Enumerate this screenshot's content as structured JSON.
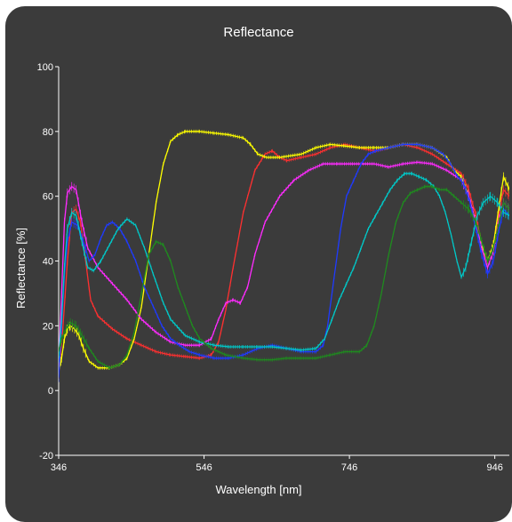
{
  "chart_data": {
    "type": "line",
    "title": "Reflectance",
    "xlabel": "Wavelength [nm]",
    "ylabel": "Reflectance [%]",
    "xlim": [
      346,
      966
    ],
    "ylim": [
      -20,
      100
    ],
    "xticks": [
      "346",
      "546",
      "746",
      "946"
    ],
    "yticks": [
      "-20",
      "0",
      "20",
      "40",
      "60",
      "80",
      "100"
    ],
    "grid": false,
    "series": [
      {
        "color": "#ff3030",
        "points": [
          [
            346,
            5
          ],
          [
            352,
            20
          ],
          [
            358,
            40
          ],
          [
            364,
            55
          ],
          [
            370,
            56
          ],
          [
            376,
            52
          ],
          [
            382,
            42
          ],
          [
            390,
            28
          ],
          [
            400,
            23
          ],
          [
            420,
            19
          ],
          [
            440,
            16
          ],
          [
            460,
            14
          ],
          [
            480,
            12
          ],
          [
            500,
            11
          ],
          [
            520,
            10.5
          ],
          [
            540,
            10
          ],
          [
            556,
            11
          ],
          [
            566,
            15
          ],
          [
            576,
            25
          ],
          [
            586,
            38
          ],
          [
            600,
            55
          ],
          [
            616,
            68
          ],
          [
            630,
            73
          ],
          [
            640,
            74
          ],
          [
            650,
            72
          ],
          [
            660,
            71
          ],
          [
            680,
            72
          ],
          [
            700,
            73
          ],
          [
            720,
            75
          ],
          [
            740,
            76
          ],
          [
            760,
            75
          ],
          [
            780,
            74
          ],
          [
            800,
            75
          ],
          [
            820,
            76
          ],
          [
            840,
            75
          ],
          [
            860,
            73
          ],
          [
            880,
            70
          ],
          [
            900,
            67
          ],
          [
            910,
            62
          ],
          [
            920,
            54
          ],
          [
            928,
            45
          ],
          [
            936,
            40
          ],
          [
            944,
            45
          ],
          [
            952,
            55
          ],
          [
            958,
            62
          ],
          [
            966,
            60
          ]
        ]
      },
      {
        "color": "#ffff00",
        "points": [
          [
            346,
            6
          ],
          [
            350,
            10
          ],
          [
            354,
            16
          ],
          [
            358,
            19
          ],
          [
            362,
            20
          ],
          [
            368,
            19
          ],
          [
            374,
            17
          ],
          [
            380,
            13
          ],
          [
            388,
            9
          ],
          [
            400,
            7
          ],
          [
            416,
            7
          ],
          [
            430,
            8
          ],
          [
            440,
            10
          ],
          [
            450,
            16
          ],
          [
            460,
            26
          ],
          [
            470,
            42
          ],
          [
            480,
            58
          ],
          [
            490,
            70
          ],
          [
            500,
            77
          ],
          [
            510,
            79
          ],
          [
            520,
            80
          ],
          [
            540,
            80
          ],
          [
            560,
            79.5
          ],
          [
            580,
            79
          ],
          [
            600,
            78
          ],
          [
            610,
            76
          ],
          [
            620,
            73
          ],
          [
            632,
            72
          ],
          [
            650,
            72
          ],
          [
            680,
            73
          ],
          [
            700,
            75
          ],
          [
            720,
            76
          ],
          [
            740,
            75.5
          ],
          [
            760,
            75
          ],
          [
            780,
            75
          ],
          [
            800,
            75
          ],
          [
            820,
            76
          ],
          [
            840,
            76
          ],
          [
            860,
            75
          ],
          [
            880,
            72
          ],
          [
            890,
            68
          ],
          [
            900,
            66
          ],
          [
            910,
            60
          ],
          [
            920,
            52
          ],
          [
            928,
            45
          ],
          [
            936,
            40
          ],
          [
            944,
            45
          ],
          [
            952,
            57
          ],
          [
            958,
            66
          ],
          [
            966,
            62
          ]
        ]
      },
      {
        "color": "#ff2bff",
        "points": [
          [
            346,
            8
          ],
          [
            350,
            30
          ],
          [
            354,
            52
          ],
          [
            358,
            61
          ],
          [
            364,
            63
          ],
          [
            370,
            62
          ],
          [
            378,
            52
          ],
          [
            386,
            44
          ],
          [
            400,
            38
          ],
          [
            420,
            33
          ],
          [
            440,
            28
          ],
          [
            460,
            22
          ],
          [
            480,
            18
          ],
          [
            500,
            15
          ],
          [
            520,
            14
          ],
          [
            540,
            14
          ],
          [
            556,
            16
          ],
          [
            566,
            22
          ],
          [
            576,
            27
          ],
          [
            586,
            28
          ],
          [
            596,
            27
          ],
          [
            606,
            32
          ],
          [
            616,
            42
          ],
          [
            630,
            52
          ],
          [
            650,
            60
          ],
          [
            670,
            65
          ],
          [
            690,
            68
          ],
          [
            710,
            70
          ],
          [
            730,
            70
          ],
          [
            750,
            70
          ],
          [
            780,
            70
          ],
          [
            800,
            69
          ],
          [
            820,
            70
          ],
          [
            840,
            70.5
          ],
          [
            860,
            70
          ],
          [
            880,
            68
          ],
          [
            900,
            65
          ],
          [
            910,
            60
          ],
          [
            920,
            52
          ],
          [
            928,
            44
          ],
          [
            936,
            38
          ],
          [
            944,
            43
          ],
          [
            952,
            53
          ],
          [
            958,
            58
          ],
          [
            966,
            56
          ]
        ]
      },
      {
        "color": "#1f3bff",
        "points": [
          [
            346,
            4
          ],
          [
            350,
            20
          ],
          [
            354,
            36
          ],
          [
            358,
            46
          ],
          [
            364,
            52
          ],
          [
            372,
            51
          ],
          [
            380,
            46
          ],
          [
            388,
            40
          ],
          [
            396,
            42
          ],
          [
            404,
            47
          ],
          [
            412,
            51
          ],
          [
            420,
            52
          ],
          [
            430,
            50
          ],
          [
            440,
            46
          ],
          [
            452,
            40
          ],
          [
            464,
            32
          ],
          [
            476,
            26
          ],
          [
            488,
            20
          ],
          [
            500,
            16
          ],
          [
            512,
            14
          ],
          [
            526,
            12
          ],
          [
            540,
            11
          ],
          [
            560,
            10
          ],
          [
            580,
            10
          ],
          [
            600,
            11
          ],
          [
            620,
            13
          ],
          [
            640,
            14
          ],
          [
            660,
            13
          ],
          [
            680,
            12
          ],
          [
            700,
            12
          ],
          [
            710,
            14
          ],
          [
            716,
            20
          ],
          [
            722,
            30
          ],
          [
            728,
            40
          ],
          [
            734,
            50
          ],
          [
            742,
            60
          ],
          [
            752,
            65
          ],
          [
            762,
            70
          ],
          [
            772,
            73
          ],
          [
            782,
            74
          ],
          [
            800,
            75
          ],
          [
            820,
            76
          ],
          [
            840,
            76
          ],
          [
            860,
            75
          ],
          [
            875,
            73
          ],
          [
            885,
            70
          ],
          [
            895,
            66
          ],
          [
            903,
            64
          ],
          [
            912,
            58
          ],
          [
            920,
            50
          ],
          [
            928,
            42
          ],
          [
            936,
            36
          ],
          [
            944,
            40
          ],
          [
            952,
            50
          ],
          [
            958,
            56
          ],
          [
            966,
            54
          ]
        ]
      },
      {
        "color": "#00c8c8",
        "points": [
          [
            346,
            10
          ],
          [
            350,
            22
          ],
          [
            354,
            38
          ],
          [
            358,
            50
          ],
          [
            364,
            55
          ],
          [
            370,
            54
          ],
          [
            378,
            46
          ],
          [
            386,
            38
          ],
          [
            394,
            37
          ],
          [
            404,
            40
          ],
          [
            416,
            45
          ],
          [
            428,
            50
          ],
          [
            440,
            53
          ],
          [
            452,
            51
          ],
          [
            464,
            44
          ],
          [
            476,
            36
          ],
          [
            490,
            27
          ],
          [
            500,
            22
          ],
          [
            520,
            17
          ],
          [
            540,
            15
          ],
          [
            560,
            14
          ],
          [
            580,
            13.5
          ],
          [
            600,
            13.5
          ],
          [
            620,
            13.5
          ],
          [
            640,
            13.5
          ],
          [
            660,
            13
          ],
          [
            680,
            12.5
          ],
          [
            700,
            13
          ],
          [
            712,
            16
          ],
          [
            722,
            22
          ],
          [
            732,
            28
          ],
          [
            742,
            33
          ],
          [
            752,
            38
          ],
          [
            762,
            44
          ],
          [
            772,
            50
          ],
          [
            782,
            54
          ],
          [
            792,
            58
          ],
          [
            802,
            62
          ],
          [
            812,
            65
          ],
          [
            822,
            67
          ],
          [
            832,
            67
          ],
          [
            842,
            66
          ],
          [
            852,
            65
          ],
          [
            862,
            63
          ],
          [
            870,
            60
          ],
          [
            878,
            55
          ],
          [
            886,
            48
          ],
          [
            894,
            40
          ],
          [
            900,
            35
          ],
          [
            906,
            38
          ],
          [
            914,
            46
          ],
          [
            922,
            54
          ],
          [
            930,
            58
          ],
          [
            940,
            60
          ],
          [
            950,
            58
          ],
          [
            958,
            55
          ],
          [
            966,
            54
          ]
        ]
      },
      {
        "color": "#1f8a1f",
        "points": [
          [
            346,
            12
          ],
          [
            350,
            16
          ],
          [
            356,
            19
          ],
          [
            362,
            21
          ],
          [
            370,
            20
          ],
          [
            378,
            17
          ],
          [
            388,
            13
          ],
          [
            400,
            9
          ],
          [
            416,
            7
          ],
          [
            430,
            8
          ],
          [
            440,
            11
          ],
          [
            450,
            18
          ],
          [
            460,
            30
          ],
          [
            470,
            42
          ],
          [
            480,
            46
          ],
          [
            490,
            45
          ],
          [
            500,
            40
          ],
          [
            510,
            32
          ],
          [
            520,
            26
          ],
          [
            530,
            20
          ],
          [
            540,
            16
          ],
          [
            556,
            13
          ],
          [
            576,
            11
          ],
          [
            600,
            10
          ],
          [
            620,
            9.5
          ],
          [
            640,
            9.5
          ],
          [
            660,
            10
          ],
          [
            680,
            10
          ],
          [
            700,
            10
          ],
          [
            720,
            11
          ],
          [
            740,
            12
          ],
          [
            760,
            12
          ],
          [
            770,
            14
          ],
          [
            780,
            20
          ],
          [
            790,
            30
          ],
          [
            800,
            42
          ],
          [
            810,
            52
          ],
          [
            820,
            58
          ],
          [
            830,
            61
          ],
          [
            840,
            62
          ],
          [
            850,
            63
          ],
          [
            860,
            63
          ],
          [
            870,
            62
          ],
          [
            880,
            62
          ],
          [
            890,
            60
          ],
          [
            900,
            58
          ],
          [
            910,
            56
          ],
          [
            920,
            52
          ],
          [
            928,
            46
          ],
          [
            936,
            40
          ],
          [
            944,
            44
          ],
          [
            952,
            52
          ],
          [
            958,
            58
          ],
          [
            966,
            56
          ]
        ]
      }
    ]
  }
}
